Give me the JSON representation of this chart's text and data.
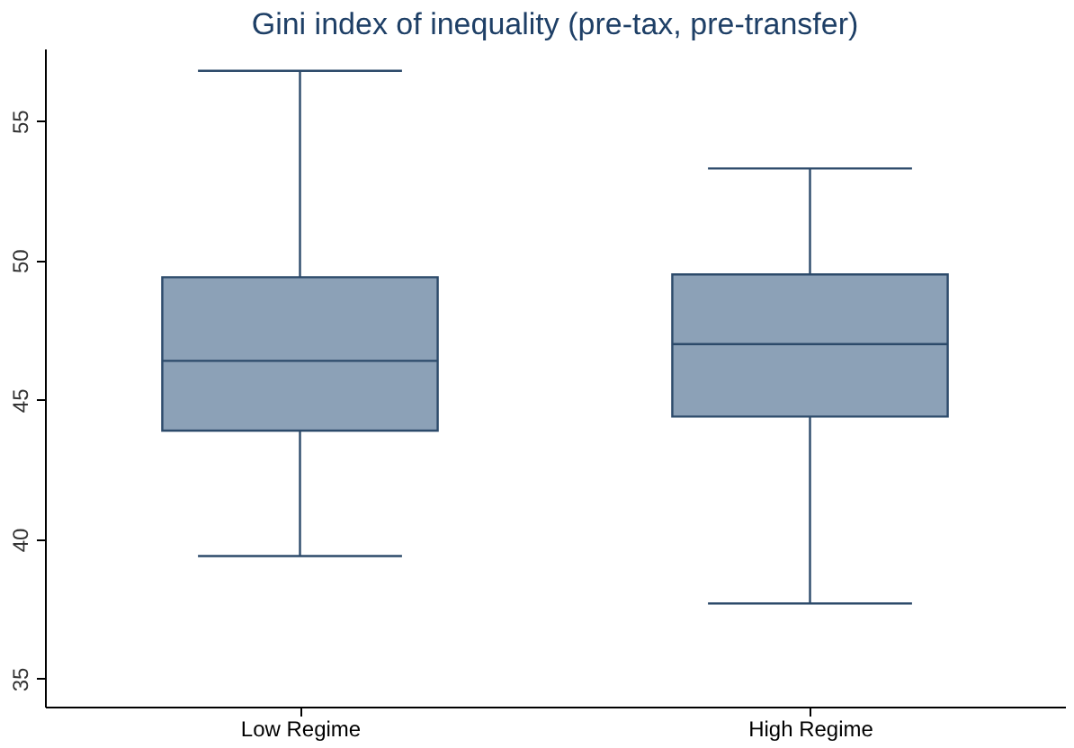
{
  "chart_data": {
    "type": "box",
    "title": "Gini index of inequality (pre-tax, pre-transfer)",
    "categories": [
      "Low Regime",
      "High Regime"
    ],
    "boxes": [
      {
        "low": 39.4,
        "q1": 43.9,
        "median": 46.4,
        "q3": 49.4,
        "high": 56.8
      },
      {
        "low": 37.7,
        "q1": 44.4,
        "median": 47.0,
        "q3": 49.5,
        "high": 53.3
      }
    ],
    "color": "#8ca1b7",
    "ylim": [
      34,
      57.6
    ],
    "yticks": [
      35,
      40,
      45,
      50,
      55
    ],
    "grid": false
  }
}
